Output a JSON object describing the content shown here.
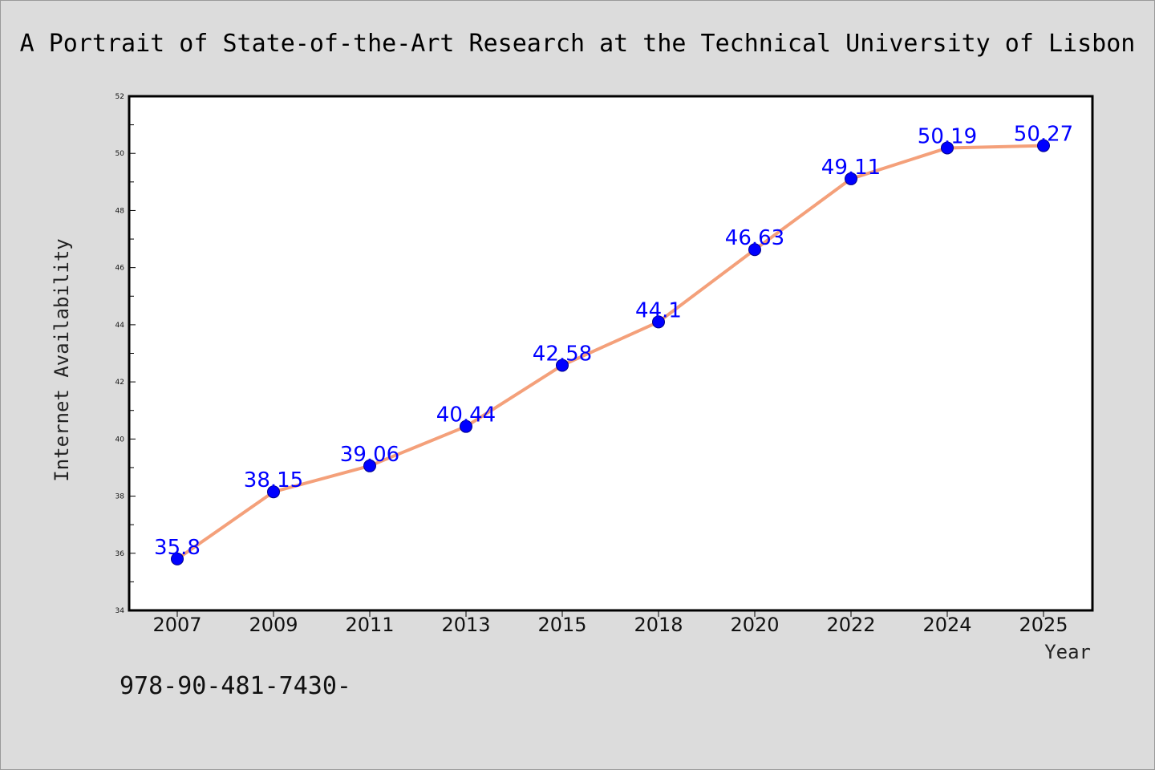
{
  "chart_data": {
    "type": "line",
    "title": "A Portrait of State-of-the-Art Research at the Technical University of Lisbon",
    "xlabel": "Year",
    "ylabel": "Internet Availability",
    "categories": [
      "2007",
      "2009",
      "2011",
      "2013",
      "2015",
      "2018",
      "2020",
      "2022",
      "2024",
      "2025"
    ],
    "series": [
      {
        "values": [
          35.8,
          38.15,
          39.06,
          40.44,
          42.58,
          44.1,
          46.63,
          49.11,
          50.19,
          50.27
        ],
        "labels": [
          "35.8",
          "38.15",
          "39.06",
          "40.44",
          "42.58",
          "44.1",
          "46.63",
          "49.11",
          "50.19",
          "50.27"
        ],
        "line_color": "#f4a07a",
        "marker_color": "#0000ff"
      }
    ],
    "ylim": [
      34,
      52
    ],
    "yticks": [
      "34",
      "36",
      "38",
      "40",
      "42",
      "44",
      "46",
      "48",
      "50",
      "52"
    ],
    "grid": false,
    "legend": "none"
  },
  "footer": {
    "text": "978-90-481-7430-"
  }
}
